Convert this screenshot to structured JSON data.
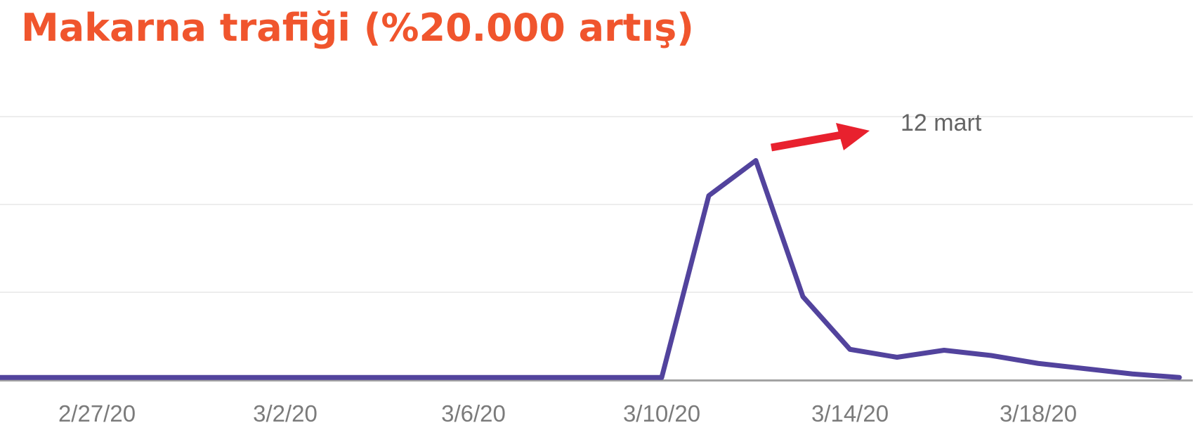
{
  "title": {
    "text": "Makarna trafiği (%20.000 artış)"
  },
  "annotation": {
    "label": "12 mart"
  },
  "colors": {
    "title": "#f0552d",
    "line": "#52439d",
    "arrow": "#e8212e",
    "gridline": "#ededed",
    "axis_line": "#a3a3a3",
    "tick_text": "#7b7b7b",
    "annotation_text": "#646464",
    "background": "#ffffff"
  },
  "chart_data": {
    "type": "line",
    "title": "Makarna trafiği (%20.000 artış)",
    "x": [
      "2/25/20",
      "2/26/20",
      "2/27/20",
      "2/28/20",
      "2/29/20",
      "3/1/20",
      "3/2/20",
      "3/3/20",
      "3/4/20",
      "3/5/20",
      "3/6/20",
      "3/7/20",
      "3/8/20",
      "3/9/20",
      "3/10/20",
      "3/11/20",
      "3/12/20",
      "3/13/20",
      "3/14/20",
      "3/15/20",
      "3/16/20",
      "3/17/20",
      "3/18/20",
      "3/19/20",
      "3/20/20",
      "3/21/20"
    ],
    "series": [
      {
        "name": "Makarna trafiği",
        "values": [
          0.03,
          0.03,
          0.03,
          0.03,
          0.03,
          0.03,
          0.03,
          0.03,
          0.03,
          0.03,
          0.03,
          0.03,
          0.03,
          0.03,
          0.03,
          2.1,
          2.5,
          0.95,
          0.35,
          0.26,
          0.34,
          0.28,
          0.19,
          0.13,
          0.07,
          0.03
        ]
      }
    ],
    "x_ticks": [
      {
        "label": "2/27/20",
        "day_index": 2
      },
      {
        "label": "3/2/20",
        "day_index": 6
      },
      {
        "label": "3/6/20",
        "day_index": 10
      },
      {
        "label": "3/10/20",
        "day_index": 14
      },
      {
        "label": "3/14/20",
        "day_index": 18
      },
      {
        "label": "3/18/20",
        "day_index": 22
      }
    ],
    "y_axis": {
      "tick_labels_visible": false,
      "gridline_count": 3,
      "units": "relative; 1.0 = one horizontal gridline interval, 0 = baseline",
      "ylim": [
        0,
        3.0
      ]
    },
    "xlabel": "",
    "ylabel": "",
    "legend": "none",
    "annotations": [
      {
        "text": "12 mart",
        "refers_to_x": "3/12/20"
      }
    ]
  }
}
